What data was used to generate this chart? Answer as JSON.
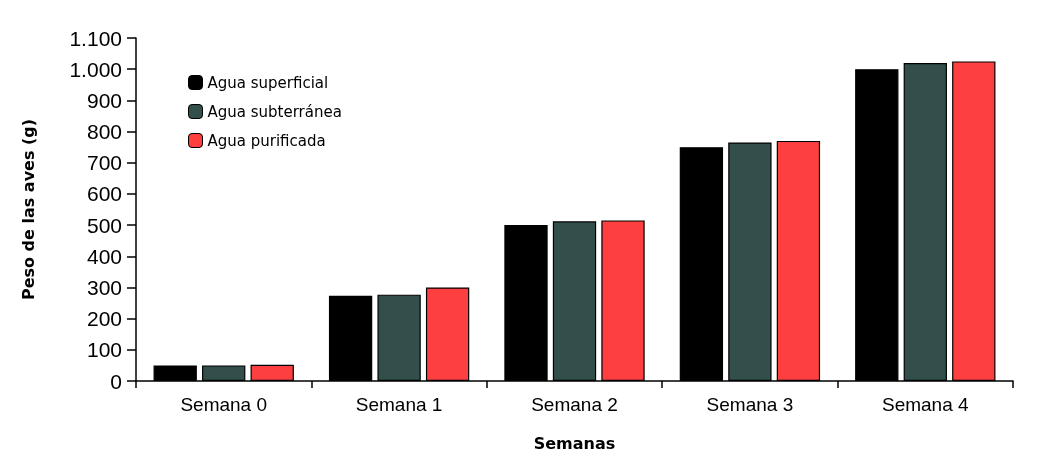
{
  "chart_data": {
    "type": "bar",
    "xlabel": "Semanas",
    "ylabel": "Peso de las aves (g)",
    "categories": [
      "Semana 0",
      "Semana 1",
      "Semana 2",
      "Semana 3",
      "Semana 4"
    ],
    "series": [
      {
        "name": "Agua superficial",
        "color": "#000000",
        "values": [
          50,
          273,
          500,
          750,
          1000
        ]
      },
      {
        "name": "Agua subterránea",
        "color": "#324f4c",
        "values": [
          50,
          277,
          512,
          765,
          1020
        ]
      },
      {
        "name": "Agua purificada",
        "color": "#fd3f3f",
        "values": [
          52,
          300,
          515,
          770,
          1025
        ]
      }
    ],
    "ylim": [
      0,
      1100
    ],
    "yticks": [
      0,
      100,
      200,
      300,
      400,
      500,
      600,
      700,
      800,
      900,
      {
        "value": 1000,
        "label": "1.000"
      },
      {
        "value": 1100,
        "label": "1.100"
      }
    ],
    "grid": false,
    "legend": "top left"
  }
}
